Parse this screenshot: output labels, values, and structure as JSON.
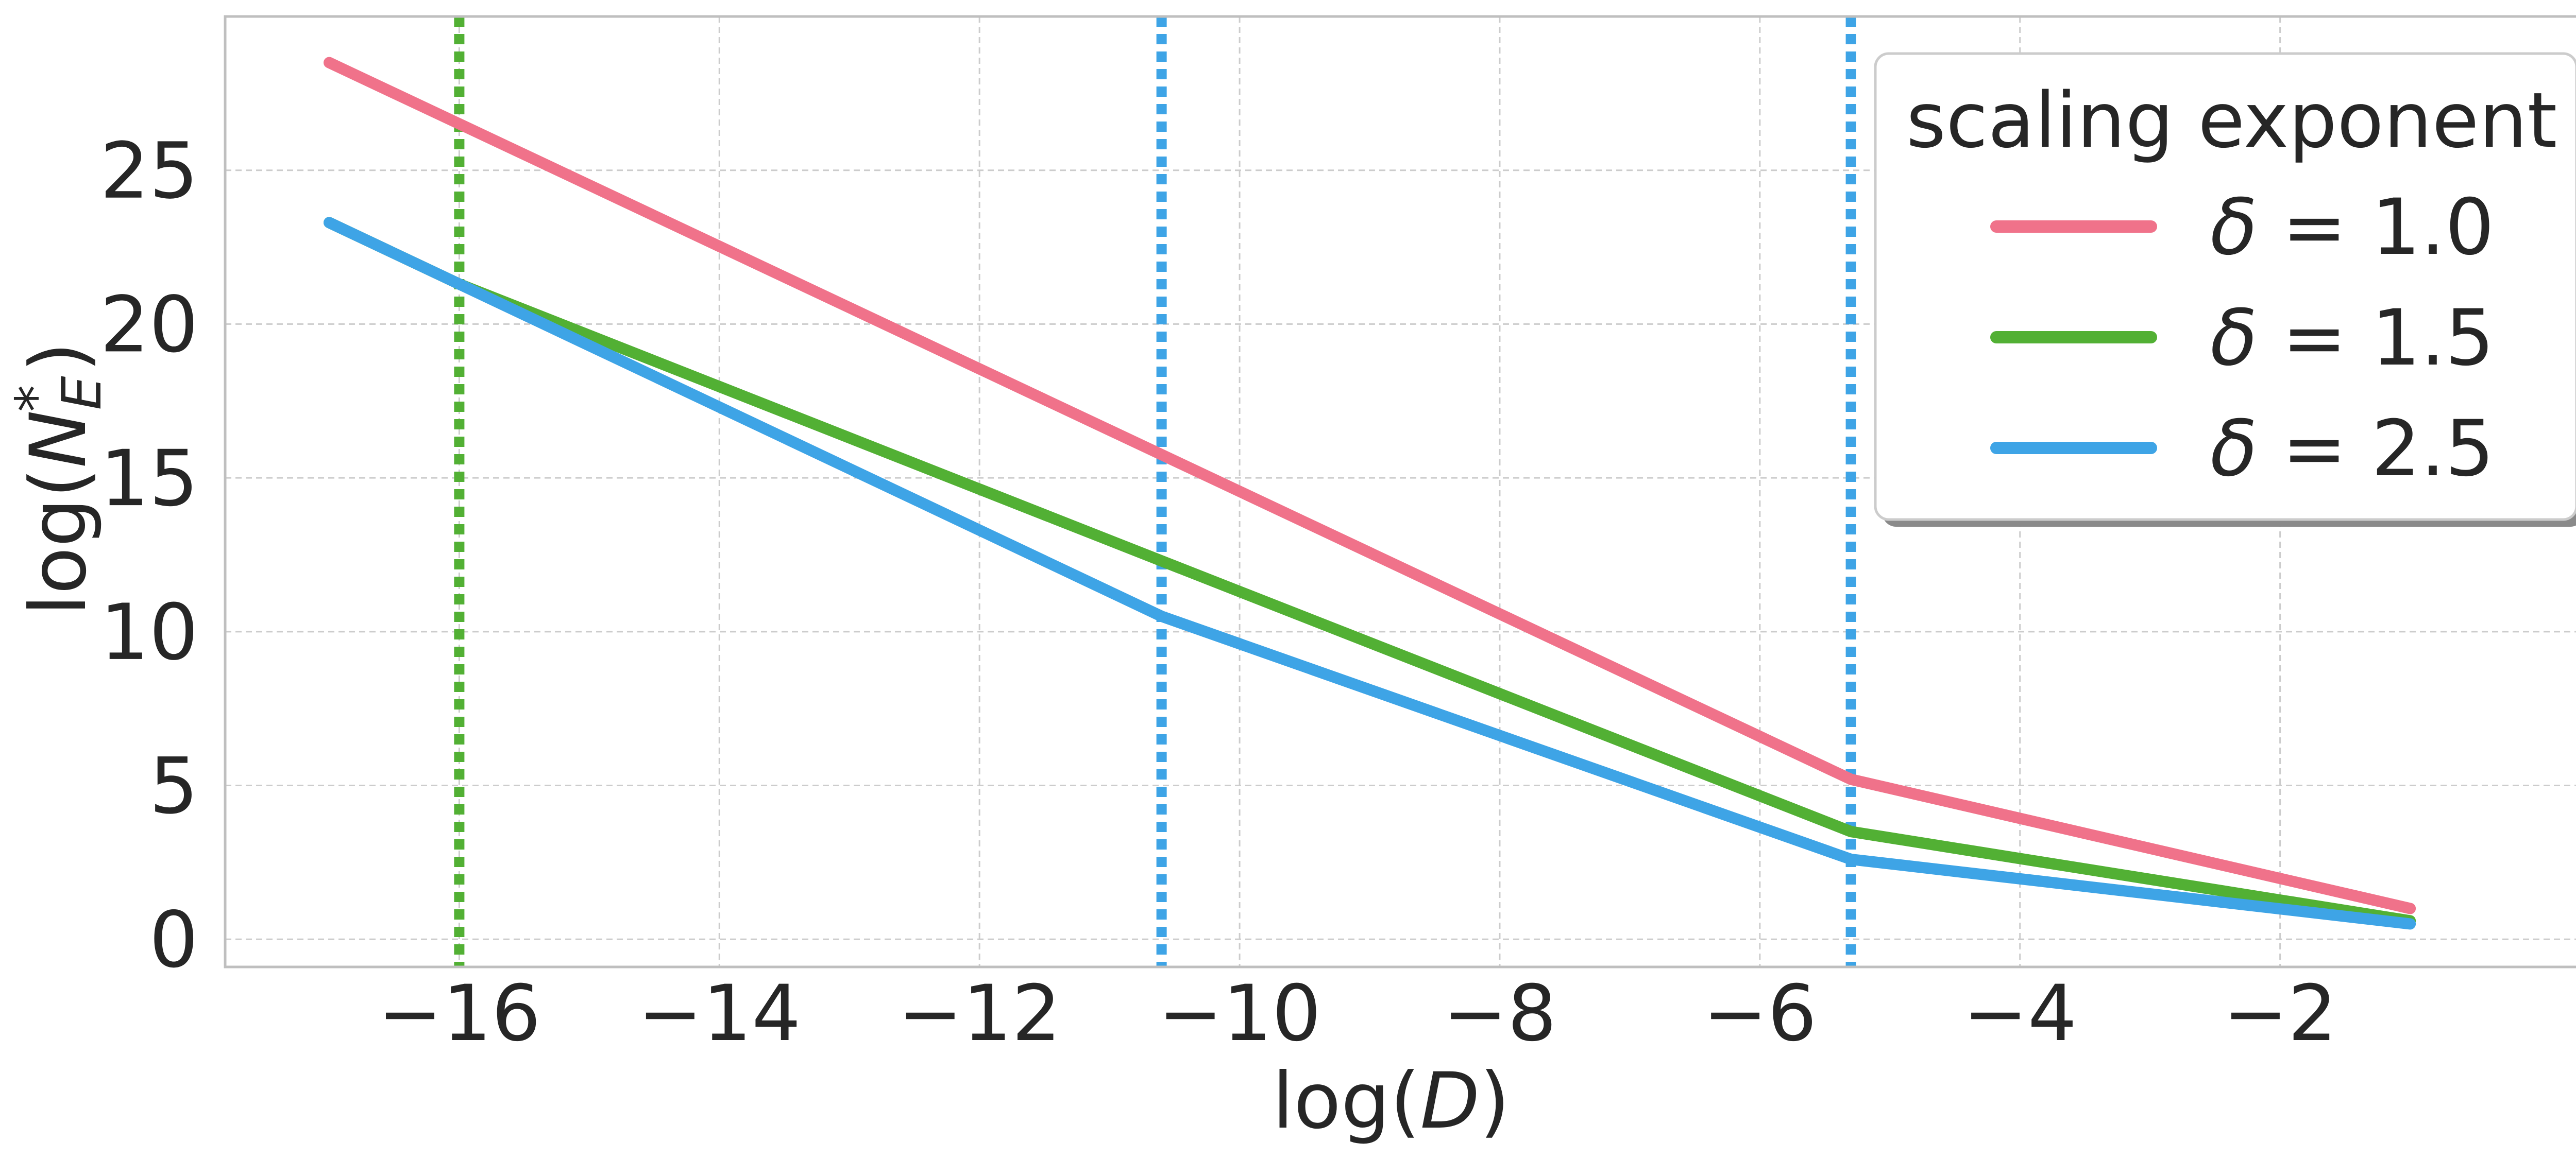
{
  "chart_data": {
    "type": "line",
    "title": "",
    "xlabel_prefix": "log(",
    "xlabel_var": "D",
    "xlabel_suffix": ")",
    "ylabel_prefix": "log(",
    "ylabel_var": "N",
    "ylabel_sub": "E",
    "ylabel_sup": "*",
    "ylabel_suffix": ")",
    "xlim": [
      -17.8,
      0.6
    ],
    "ylim": [
      -0.9,
      30.0
    ],
    "xticks": [
      -16,
      -14,
      -12,
      -10,
      -8,
      -6,
      -4,
      -2
    ],
    "xtick_labels": [
      "−16",
      "−14",
      "−12",
      "−10",
      "−8",
      "−6",
      "−4",
      "−2"
    ],
    "yticks": [
      0,
      5,
      10,
      15,
      20,
      25
    ],
    "ytick_labels": [
      "0",
      "5",
      "10",
      "15",
      "20",
      "25"
    ],
    "grid": true,
    "legend_title": "scaling exponent",
    "legend_title_symbol": "δ",
    "legend_placement": "top-right",
    "series": [
      {
        "name": "δ = 1.0",
        "symbol": "δ",
        "value_label": " = 1.0",
        "color": "#f0728a",
        "x": [
          -17.0,
          -5.3,
          -1.0
        ],
        "y": [
          28.5,
          5.2,
          1.0
        ]
      },
      {
        "name": "δ = 1.5",
        "symbol": "δ",
        "value_label": " = 1.5",
        "color": "#52b034",
        "x": [
          -17.0,
          -16.0,
          -10.6,
          -5.3,
          -1.0
        ],
        "y": [
          23.3,
          21.3,
          12.3,
          3.5,
          0.6
        ]
      },
      {
        "name": "δ = 2.5",
        "symbol": "δ",
        "value_label": " = 2.5",
        "color": "#3ea4e6",
        "x": [
          -17.0,
          -16.0,
          -10.6,
          -5.3,
          -1.0
        ],
        "y": [
          23.3,
          21.3,
          10.5,
          2.6,
          0.5
        ]
      }
    ],
    "vlines": [
      {
        "x": -16.0,
        "color": "#52b034",
        "style": "dotted"
      },
      {
        "x": -10.6,
        "color": "#3ea4e6",
        "style": "dotted"
      },
      {
        "x": -5.3,
        "color": "#3ea4e6",
        "style": "dotted"
      }
    ]
  }
}
